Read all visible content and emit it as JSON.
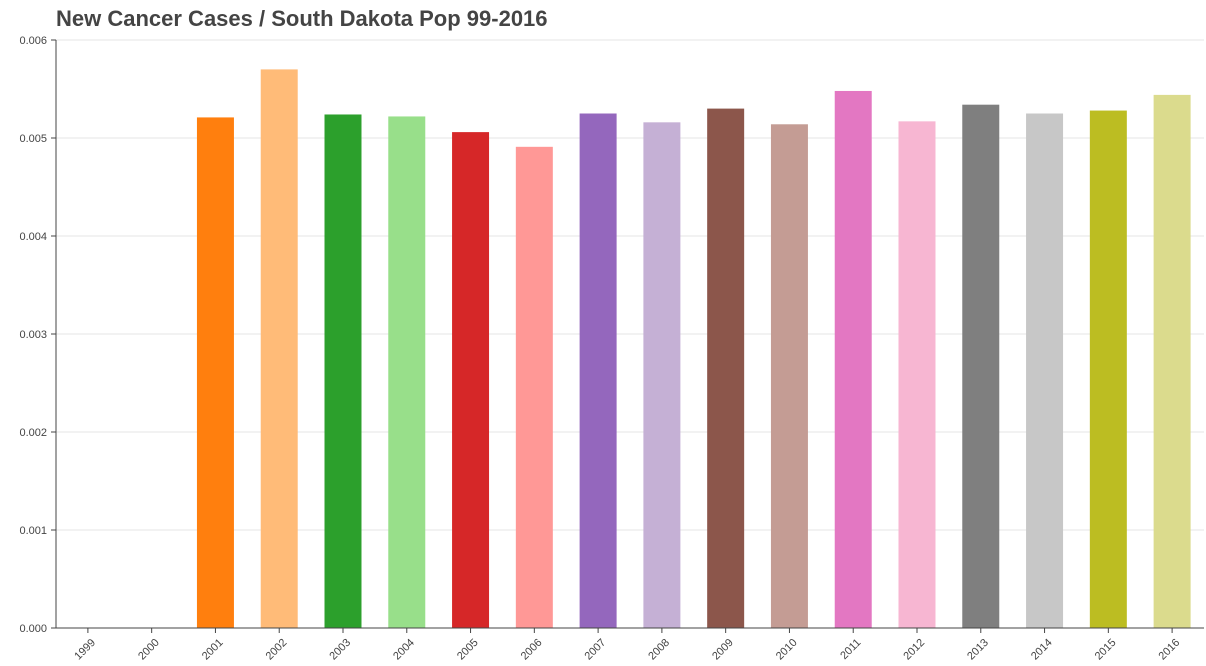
{
  "chart_data": {
    "type": "bar",
    "title": "New Cancer Cases / South Dakota Pop 99-2016",
    "xlabel": "",
    "ylabel": "",
    "categories": [
      "1999",
      "2000",
      "2001",
      "2002",
      "2003",
      "2004",
      "2005",
      "2006",
      "2007",
      "2008",
      "2009",
      "2010",
      "2011",
      "2012",
      "2013",
      "2014",
      "2015",
      "2016"
    ],
    "values": [
      0,
      0,
      0.00521,
      0.0057,
      0.00524,
      0.00522,
      0.00506,
      0.00491,
      0.00525,
      0.00516,
      0.0053,
      0.00514,
      0.00548,
      0.00517,
      0.00534,
      0.00525,
      0.00528,
      0.00544
    ],
    "colors": [
      "#1f77b4",
      "#aec7e8",
      "#ff7f0e",
      "#ffbb78",
      "#2ca02c",
      "#98df8a",
      "#d62728",
      "#ff9896",
      "#9467bd",
      "#c5b0d5",
      "#8c564b",
      "#c49c94",
      "#e377c2",
      "#f7b6d2",
      "#7f7f7f",
      "#c7c7c7",
      "#bcbd22",
      "#dbdb8d"
    ],
    "ylim": [
      0,
      0.006
    ],
    "yticks": [
      "0.000",
      "0.001",
      "0.002",
      "0.003",
      "0.004",
      "0.005",
      "0.006"
    ],
    "grid": true,
    "legend": "none"
  }
}
